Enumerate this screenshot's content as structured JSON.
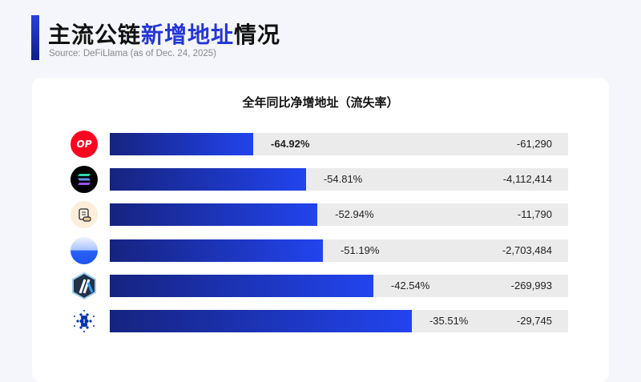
{
  "header": {
    "title_pre": "主流公链",
    "title_hl": "新增地址",
    "title_post": "情况",
    "source": "Source: DeFiLlama (as of Dec. 24, 2025)"
  },
  "chart_data": {
    "type": "bar",
    "title": "全年同比净增地址（流失率）",
    "colors": {
      "bar_start": "#16237f",
      "bar_end": "#2244ee",
      "track": "#ebebeb"
    },
    "rows": [
      {
        "icon": "optimism-logo-icon",
        "logo_text": "OP",
        "rate": "-64.92%",
        "net": "-61,290",
        "bar_fill": 0.313,
        "bold": true
      },
      {
        "icon": "solana-logo-icon",
        "rate": "-54.81%",
        "net": "-4,112,414",
        "bar_fill": 0.428
      },
      {
        "icon": "scroll-logo-icon",
        "rate": "-52.94%",
        "net": "-11,790",
        "bar_fill": 0.453
      },
      {
        "icon": "base-logo-icon",
        "rate": "-51.19%",
        "net": "-2,703,484",
        "bar_fill": 0.465
      },
      {
        "icon": "arbitrum-logo-icon",
        "rate": "-42.54%",
        "net": "-269,993",
        "bar_fill": 0.575
      },
      {
        "icon": "cardano-logo-icon",
        "rate": "-35.51%",
        "net": "-29,745",
        "bar_fill": 0.659
      }
    ]
  }
}
